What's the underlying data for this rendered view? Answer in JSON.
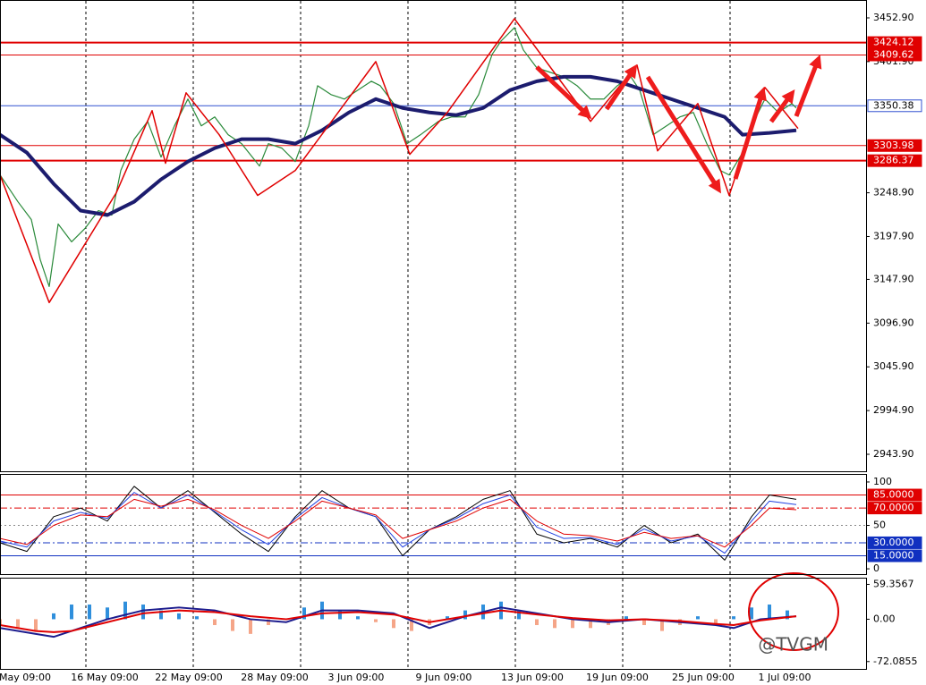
{
  "chart_data": [
    {
      "type": "line",
      "xlim": [
        0,
        242
      ],
      "ylim": [
        2924.1,
        3472.7
      ],
      "yticks": [
        {
          "value": 3452.9,
          "label": "3452.90"
        },
        {
          "value": 3401.9,
          "label": "3401.90"
        },
        {
          "value": 3248.9,
          "label": "3248.90"
        },
        {
          "value": 3197.9,
          "label": "3197.90"
        },
        {
          "value": 3147.9,
          "label": "3147.90"
        },
        {
          "value": 3096.9,
          "label": "3096.90"
        },
        {
          "value": 3045.9,
          "label": "3045.90"
        },
        {
          "value": 2994.9,
          "label": "2994.90"
        },
        {
          "value": 2943.9,
          "label": "2943.90"
        }
      ],
      "xticks": [
        {
          "value": 7,
          "label": "May 09:00"
        },
        {
          "value": 29.25,
          "label": "16 May 09:00"
        },
        {
          "value": 52.75,
          "label": "22 May 09:00"
        },
        {
          "value": 76.75,
          "label": "28 May 09:00"
        },
        {
          "value": 99.5,
          "label": "3 Jun 09:00"
        },
        {
          "value": 124,
          "label": "9 Jun 09:00"
        },
        {
          "value": 148.75,
          "label": "13 Jun 09:00"
        },
        {
          "value": 172.5,
          "label": "19 Jun 09:00"
        },
        {
          "value": 196.5,
          "label": "25 Jun 09:00"
        },
        {
          "value": 219.25,
          "label": "1 Jul 09:00"
        }
      ],
      "vlines": [
        24,
        54,
        84,
        114,
        144,
        174,
        204
      ],
      "levels": [
        {
          "value": 3424.12,
          "color": "#e00000",
          "width": 2,
          "label_fill": "#e00000",
          "text_color": "#ffffff"
        },
        {
          "value": 3409.62,
          "color": "#e00000",
          "width": 1,
          "label_fill": "#e00000",
          "text_color": "#ffffff"
        },
        {
          "value": 3350.38,
          "color": "#3050d0",
          "width": 1,
          "label_fill": "#ffffff",
          "text_color": "#000000"
        },
        {
          "value": 3303.98,
          "color": "#e00000",
          "width": 1,
          "label_fill": "#e00000",
          "text_color": "#ffffff"
        },
        {
          "value": 3286.37,
          "color": "#e00000",
          "width": 2,
          "label_fill": "#e00000",
          "text_color": "#ffffff"
        }
      ],
      "series": [
        {
          "color": "#2a8a3a",
          "width": 1.2,
          "x": [
            0,
            2.5,
            5,
            8.75,
            11.25,
            13.75,
            16.25,
            20,
            23.75,
            27.5,
            31.25,
            33.75,
            37.5,
            41.25,
            45,
            48.75,
            52.5,
            56.25,
            60,
            63.75,
            67.5,
            72.5,
            75,
            78.75,
            82.5,
            86.25,
            88.75,
            92.5,
            96.25,
            100,
            103.75,
            106.25,
            110,
            113.75,
            117.5,
            122.5,
            126.25,
            130,
            133.75,
            137.5,
            140,
            143.75,
            146.25,
            150,
            153.75,
            157.5,
            161.25,
            165,
            168.75,
            172.5,
            176.25,
            178.75,
            182.5,
            186.25,
            190,
            193.75,
            197.5,
            201.25,
            203.75,
            207.5,
            211.25,
            213.75,
            217.5,
            221.25,
            222.5
          ],
          "values": [
            3269.7,
            3254.1,
            3238.5,
            3217.7,
            3170.8,
            3139.6,
            3212.5,
            3191.7,
            3207.3,
            3228.1,
            3222.9,
            3274.9,
            3311.4,
            3332.2,
            3290.5,
            3327.0,
            3358.2,
            3327.0,
            3337.4,
            3316.6,
            3306.2,
            3280.1,
            3306.2,
            3301.0,
            3285.3,
            3327.0,
            3373.8,
            3363.4,
            3358.2,
            3368.6,
            3379.0,
            3373.8,
            3353.0,
            3306.2,
            3316.6,
            3332.2,
            3337.4,
            3337.4,
            3363.4,
            3410.2,
            3425.9,
            3441.5,
            3415.4,
            3394.6,
            3389.4,
            3384.2,
            3373.8,
            3358.2,
            3358.2,
            3373.8,
            3384.2,
            3368.6,
            3316.6,
            3327.0,
            3337.4,
            3342.6,
            3306.2,
            3274.9,
            3269.7,
            3295.7,
            3337.4,
            3358.2,
            3342.6,
            3353.0,
            3347.8
          ]
        },
        {
          "color": "#1c1c6e",
          "width": 4,
          "x": [
            0,
            7.5,
            15,
            22.5,
            30,
            37.5,
            45,
            52.5,
            60,
            67.5,
            75,
            82.5,
            90,
            97.5,
            105,
            112.5,
            120,
            127.5,
            135,
            142.5,
            150,
            157.5,
            165,
            172.5,
            180,
            187.5,
            195,
            202.5,
            207.5,
            215,
            222.5
          ],
          "values": [
            3316.6,
            3295.7,
            3259.3,
            3228.1,
            3222.9,
            3238.5,
            3264.5,
            3285.3,
            3301.0,
            3311.4,
            3311.4,
            3306.2,
            3321.8,
            3342.6,
            3358.2,
            3347.8,
            3342.6,
            3339.5,
            3347.8,
            3368.6,
            3379.0,
            3384.2,
            3384.2,
            3379.0,
            3368.6,
            3358.2,
            3347.8,
            3337.4,
            3316.6,
            3318.7,
            3321.8
          ]
        },
        {
          "color": "#e00000",
          "width": 1.5,
          "x": [
            0,
            13.75,
            32.5,
            42.5,
            46.25,
            52,
            61.25,
            72,
            82.5,
            105,
            114.5,
            125,
            143.75,
            165,
            178,
            183.75,
            195,
            203.75,
            213.75,
            223
          ],
          "values": [
            3269.7,
            3120.9,
            3248.9,
            3344.7,
            3283.3,
            3365.5,
            3316.6,
            3245.8,
            3274.9,
            3401.9,
            3293.7,
            3342.6,
            3451.9,
            3332.2,
            3397.8,
            3297.8,
            3353.0,
            3245.8,
            3371.7,
            3323.9
          ]
        }
      ]
    },
    {
      "type": "line",
      "xlim": [
        0,
        242
      ],
      "ylim": [
        -6.1,
        108.2
      ],
      "yticks": [
        100,
        50,
        0
      ],
      "levels": [
        {
          "value": 85,
          "label": "85.0000",
          "color": "#e00000",
          "dash": "",
          "label_fill": "#e00000",
          "text_color": "#ffffff"
        },
        {
          "value": 70,
          "label": "70.0000",
          "color": "#e00000",
          "dash": "8 3 2 3",
          "label_fill": "#e00000",
          "text_color": "#ffffff"
        },
        {
          "value": 30,
          "label": "30.0000",
          "color": "#1030c0",
          "dash": "8 3 2 3",
          "label_fill": "#1030c0",
          "text_color": "#ffffff"
        },
        {
          "value": 15,
          "label": "15.0000",
          "color": "#1030c0",
          "dash": "",
          "label_fill": "#1030c0",
          "text_color": "#ffffff"
        }
      ],
      "series": [
        {
          "color": "#000000",
          "width": 1,
          "x": [
            0,
            7.5,
            15,
            22.5,
            30,
            37.5,
            45,
            52.5,
            60,
            67.5,
            75,
            82.5,
            90,
            97.5,
            105,
            112.5,
            120,
            127.5,
            135,
            142.5,
            150,
            157.5,
            165,
            172.5,
            180,
            187.5,
            195,
            202.5,
            210,
            215,
            222.5
          ],
          "values": [
            30,
            20,
            60,
            70,
            55,
            95,
            70,
            90,
            65,
            40,
            20,
            60,
            90,
            70,
            60,
            15,
            45,
            60,
            80,
            90,
            40,
            30,
            35,
            25,
            50,
            30,
            40,
            10,
            60,
            85,
            80
          ]
        },
        {
          "color": "#2040e0",
          "width": 1,
          "x": [
            0,
            7.5,
            15,
            22.5,
            30,
            37.5,
            45,
            52.5,
            60,
            67.5,
            75,
            82.5,
            90,
            97.5,
            105,
            112.5,
            120,
            127.5,
            135,
            142.5,
            150,
            157.5,
            165,
            172.5,
            180,
            187.5,
            195,
            202.5,
            210,
            215,
            222.5
          ],
          "values": [
            32,
            25,
            55,
            65,
            58,
            88,
            70,
            85,
            66,
            45,
            28,
            58,
            82,
            70,
            60,
            25,
            45,
            58,
            75,
            85,
            48,
            35,
            36,
            28,
            46,
            32,
            38,
            18,
            55,
            78,
            74
          ]
        },
        {
          "color": "#e00000",
          "width": 1,
          "x": [
            0,
            7.5,
            15,
            22.5,
            30,
            37.5,
            45,
            52.5,
            60,
            67.5,
            75,
            82.5,
            90,
            97.5,
            105,
            112.5,
            120,
            127.5,
            135,
            142.5,
            150,
            157.5,
            165,
            172.5,
            180,
            187.5,
            195,
            202.5,
            210,
            215,
            222.5
          ],
          "values": [
            35,
            28,
            50,
            62,
            60,
            80,
            72,
            80,
            68,
            50,
            35,
            55,
            78,
            70,
            62,
            35,
            45,
            55,
            70,
            80,
            55,
            40,
            38,
            32,
            42,
            35,
            38,
            25,
            50,
            70,
            68
          ]
        }
      ]
    },
    {
      "type": "line",
      "xlim": [
        0,
        242
      ],
      "ylim": [
        -84.6,
        69.2
      ],
      "yticks": [
        59.3567,
        {
          "value": 0,
          "label": "0.00"
        },
        -72.0855
      ],
      "series": [
        {
          "type": "bar",
          "color": "#2f8fdc",
          "negative_color": "#f5a588",
          "x": [
            0,
            5,
            10,
            15,
            20,
            25,
            30,
            35,
            40,
            45,
            50,
            55,
            60,
            65,
            70,
            75,
            80,
            85,
            90,
            95,
            100,
            105,
            110,
            115,
            120,
            125,
            130,
            135,
            140,
            145,
            150,
            155,
            160,
            165,
            170,
            175,
            180,
            185,
            190,
            195,
            200,
            205,
            210,
            215,
            220
          ],
          "values": [
            -10,
            -15,
            -20,
            10,
            25,
            25,
            20,
            30,
            25,
            15,
            10,
            5,
            -10,
            -20,
            -25,
            -10,
            0,
            20,
            30,
            15,
            5,
            -5,
            -15,
            -20,
            -10,
            5,
            15,
            25,
            30,
            15,
            -10,
            -15,
            -15,
            -15,
            -10,
            5,
            -10,
            -20,
            -10,
            5,
            -10,
            5,
            20,
            25,
            15
          ]
        },
        {
          "color": "#1c1c8e",
          "width": 2,
          "x": [
            0,
            10,
            15,
            20,
            30,
            40,
            50,
            60,
            70,
            80,
            90,
            100,
            110,
            120,
            130,
            140,
            150,
            160,
            170,
            180,
            190,
            200,
            205,
            212.5,
            222.5
          ],
          "values": [
            -15,
            -25,
            -30,
            -20,
            0,
            15,
            20,
            15,
            0,
            -5,
            15,
            15,
            10,
            -15,
            5,
            20,
            10,
            0,
            -5,
            0,
            -5,
            -10,
            -15,
            0,
            5
          ]
        },
        {
          "color": "#e00000",
          "width": 2,
          "x": [
            0,
            10,
            15,
            20,
            30,
            40,
            50,
            60,
            70,
            80,
            90,
            100,
            110,
            120,
            130,
            140,
            150,
            160,
            170,
            180,
            190,
            200,
            205,
            212.5,
            222.5
          ],
          "values": [
            -10,
            -20,
            -22,
            -20,
            -5,
            10,
            15,
            12,
            5,
            0,
            10,
            12,
            8,
            -5,
            5,
            15,
            8,
            2,
            -2,
            0,
            -3,
            -8,
            -10,
            -2,
            5
          ]
        }
      ]
    }
  ],
  "watermark": "@TVGM"
}
